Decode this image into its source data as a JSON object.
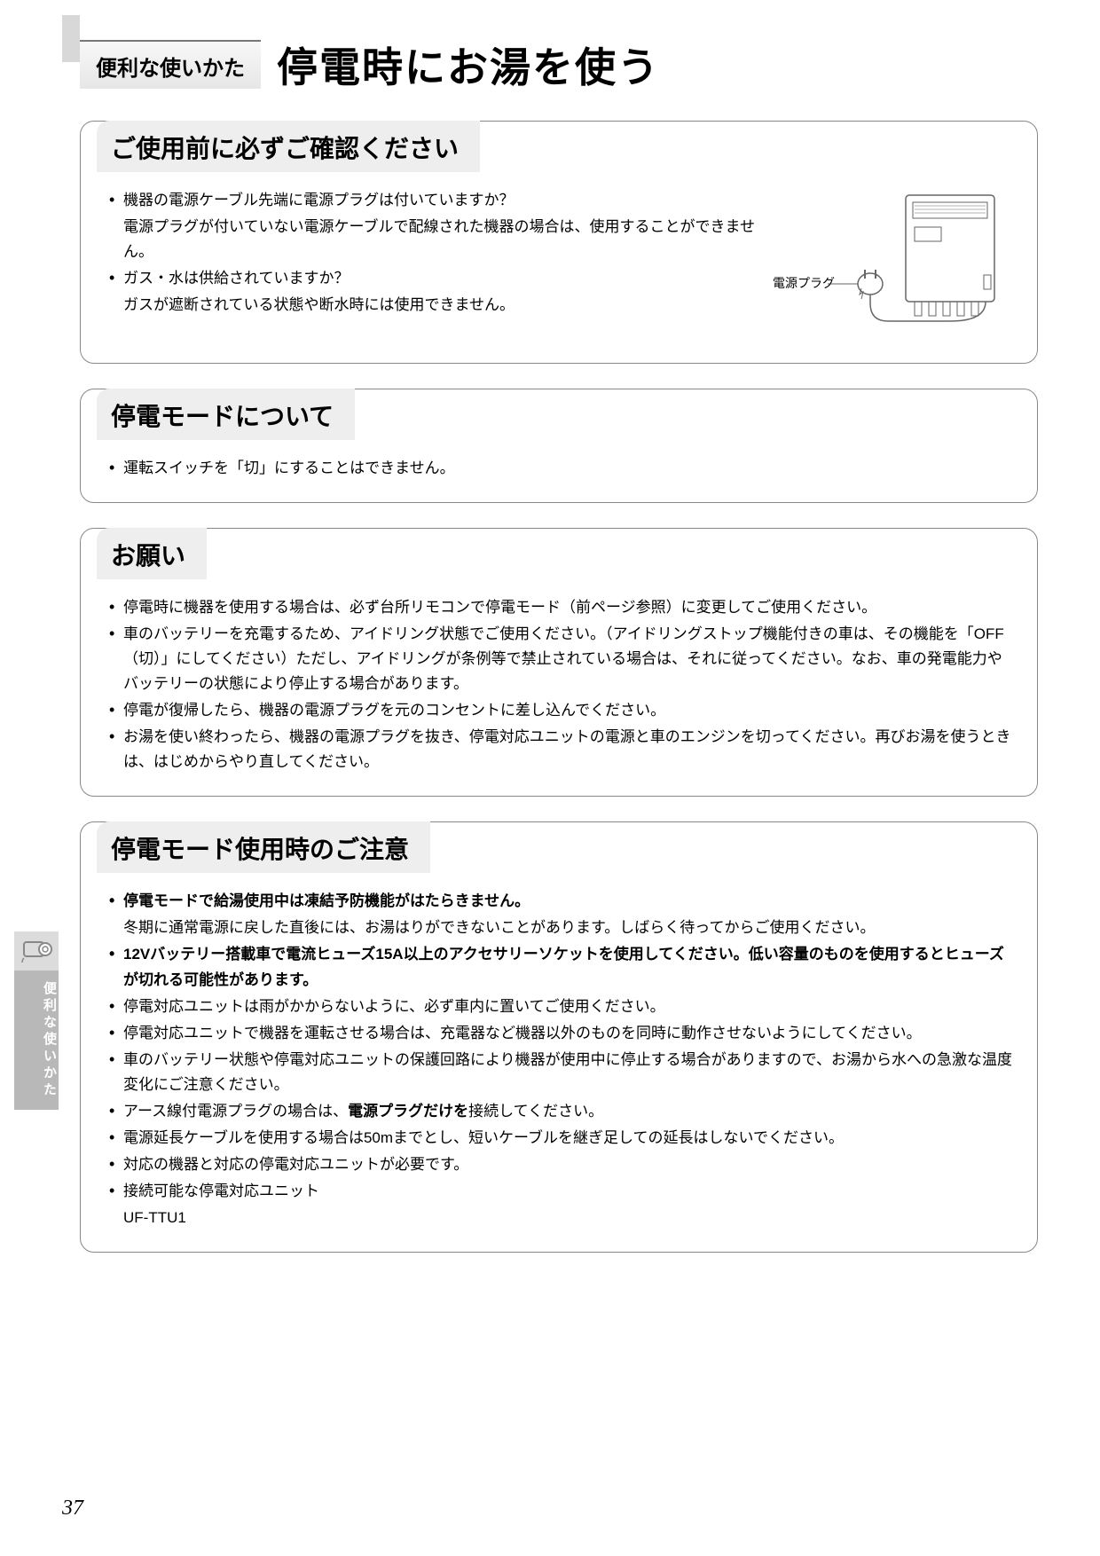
{
  "header": {
    "category": "便利な使いかた",
    "title": "停電時にお湯を使う"
  },
  "sections": [
    {
      "heading": "ご使用前に必ずご確認ください",
      "items": [
        {
          "type": "bullet",
          "text": "機器の電源ケーブル先端に電源プラグは付いていますか？"
        },
        {
          "type": "sub",
          "text": "電源プラグが付いていない電源ケーブルで配線された機器の場合は、使用することができません。"
        },
        {
          "type": "bullet",
          "text": "ガス・水は供給されていますか？"
        },
        {
          "type": "sub",
          "text": "ガスが遮断されている状態や断水時には使用できません。"
        }
      ],
      "diagram": {
        "label": "電源プラグ"
      }
    },
    {
      "heading": "停電モードについて",
      "items": [
        {
          "type": "bullet",
          "text": "運転スイッチを「切」にすることはできません。"
        }
      ]
    },
    {
      "heading": "お願い",
      "items": [
        {
          "type": "bullet",
          "text": "停電時に機器を使用する場合は、必ず台所リモコンで停電モード（前ページ参照）に変更してご使用ください。"
        },
        {
          "type": "bullet",
          "text": "車のバッテリーを充電するため、アイドリング状態でご使用ください。（アイドリングストップ機能付きの車は、その機能を「OFF（切）」にしてください）ただし、アイドリングが条例等で禁止されている場合は、それに従ってください。なお、車の発電能力やバッテリーの状態により停止する場合があります。"
        },
        {
          "type": "bullet",
          "text": "停電が復帰したら、機器の電源プラグを元のコンセントに差し込んでください。"
        },
        {
          "type": "bullet",
          "text": "お湯を使い終わったら、機器の電源プラグを抜き、停電対応ユニットの電源と車のエンジンを切ってください。再びお湯を使うときは、はじめからやり直してください。"
        }
      ]
    },
    {
      "heading": "停電モード使用時のご注意",
      "items": [
        {
          "type": "bullet",
          "bold": true,
          "text": "停電モードで給湯使用中は凍結予防機能がはたらきません。"
        },
        {
          "type": "sub",
          "text": "冬期に通常電源に戻した直後には、お湯はりができないことがあります。しばらく待ってからご使用ください。"
        },
        {
          "type": "bullet",
          "bold": true,
          "text": "12Vバッテリー搭載車で電流ヒューズ15A以上のアクセサリーソケットを使用してください。低い容量のものを使用するとヒューズが切れる可能性があります。"
        },
        {
          "type": "bullet",
          "text": "停電対応ユニットは雨がかからないように、必ず車内に置いてご使用ください。"
        },
        {
          "type": "bullet",
          "text": "停電対応ユニットで機器を運転させる場合は、充電器など機器以外のものを同時に動作させないようにしてください。"
        },
        {
          "type": "bullet",
          "text": "車のバッテリー状態や停電対応ユニットの保護回路により機器が使用中に停止する場合がありますので、お湯から水への急激な温度変化にご注意ください。"
        },
        {
          "type": "bullet",
          "html": "アース線付電源プラグの場合は、<b>電源プラグだけを</b>接続してください。"
        },
        {
          "type": "bullet",
          "text": "電源延長ケーブルを使用する場合は50mまでとし、短いケーブルを継ぎ足しての延長はしないでください。"
        },
        {
          "type": "bullet",
          "text": "対応の機器と対応の停電対応ユニットが必要です。"
        },
        {
          "type": "bullet",
          "text": "接続可能な停電対応ユニット"
        },
        {
          "type": "sub",
          "text": "UF-TTU1"
        }
      ]
    }
  ],
  "sideTab": {
    "label": "便利な使いかた"
  },
  "pageNumber": "37",
  "colors": {
    "text": "#000000",
    "sectionBorder": "#888888",
    "headingBg": "#eeeeee",
    "sideTabBg": "#b8b8b8",
    "sideTabIconBg": "#dcdcdc",
    "background": "#ffffff",
    "diagramStroke": "#666666"
  }
}
